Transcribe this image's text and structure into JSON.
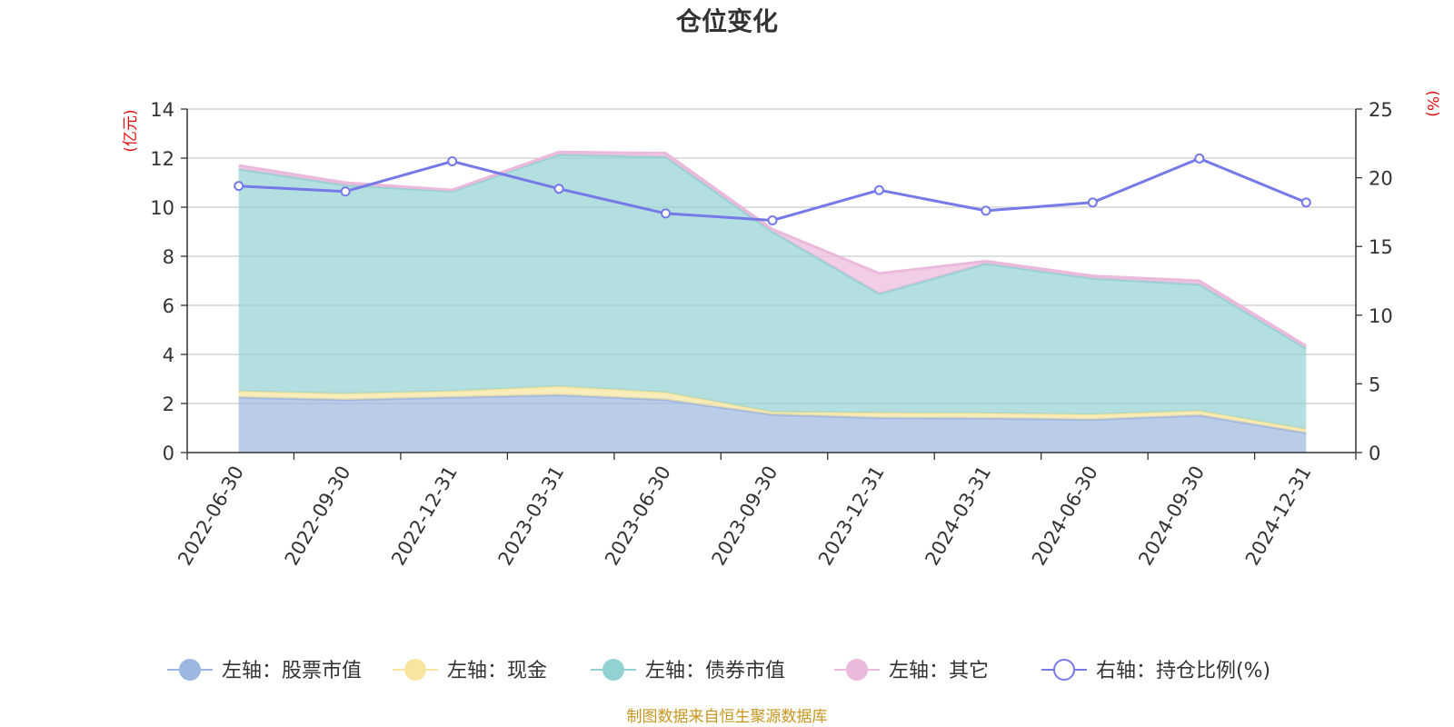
{
  "chart_data": {
    "type": "area",
    "title": "仓位变化",
    "categories": [
      "2022-06-30",
      "2022-09-30",
      "2022-12-31",
      "2023-03-31",
      "2023-06-30",
      "2023-09-30",
      "2023-12-31",
      "2024-03-31",
      "2024-06-30",
      "2024-09-30",
      "2024-12-31"
    ],
    "left_axis": {
      "unit": "(亿元)",
      "range": [
        0,
        14
      ],
      "ticks": [
        "0",
        "2",
        "4",
        "6",
        "8",
        "10",
        "12",
        "14"
      ]
    },
    "right_axis": {
      "unit": "(%)",
      "range": [
        0,
        25
      ],
      "ticks": [
        "0",
        "5",
        "10",
        "15",
        "20",
        "25"
      ]
    },
    "stack": [
      {
        "name": "左轴：股票市值",
        "color": "#9eb7e0",
        "values": [
          2.25,
          2.15,
          2.25,
          2.35,
          2.15,
          1.55,
          1.42,
          1.4,
          1.35,
          1.52,
          0.8
        ]
      },
      {
        "name": "左轴：现金",
        "color": "#f8e6a0",
        "values": [
          0.25,
          0.25,
          0.25,
          0.35,
          0.3,
          0.1,
          0.2,
          0.2,
          0.2,
          0.18,
          0.15
        ]
      },
      {
        "name": "左轴：债券市值",
        "color": "#93d2d3",
        "values": [
          9.05,
          8.5,
          8.15,
          9.45,
          9.6,
          7.35,
          4.85,
          6.1,
          5.55,
          5.15,
          3.3
        ]
      },
      {
        "name": "左轴：其它",
        "color": "#ebb9dc",
        "values": [
          0.15,
          0.1,
          0.05,
          0.1,
          0.15,
          0.1,
          0.83,
          0.1,
          0.1,
          0.15,
          0.1
        ]
      }
    ],
    "line": {
      "name": "右轴：持仓比例(%)",
      "color": "#7679e8",
      "values": [
        19.4,
        19.0,
        21.2,
        19.2,
        17.4,
        16.9,
        19.1,
        17.6,
        18.2,
        21.4,
        18.2
      ]
    }
  },
  "footer": {
    "source": "制图数据来自恒生聚源数据库"
  }
}
